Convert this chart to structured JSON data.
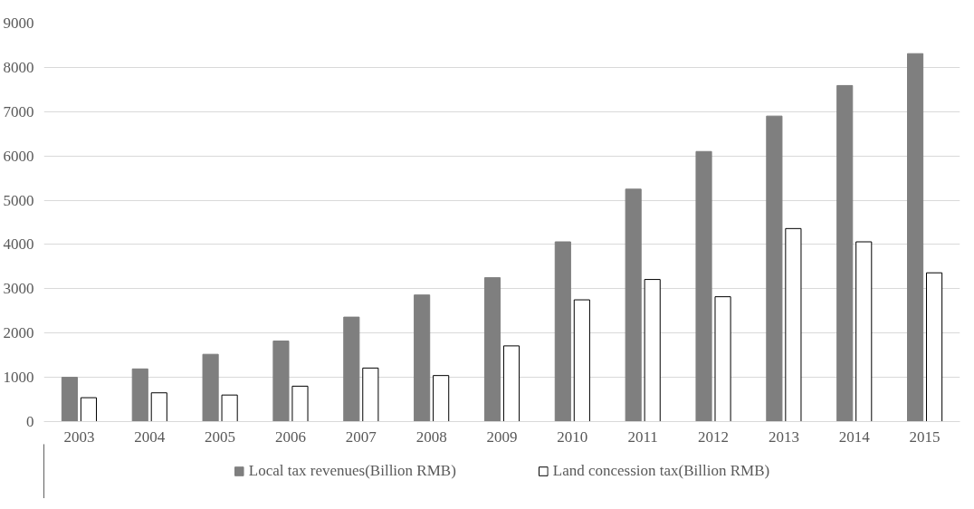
{
  "chart_data": {
    "type": "bar",
    "categories": [
      "2003",
      "2004",
      "2005",
      "2006",
      "2007",
      "2008",
      "2009",
      "2010",
      "2011",
      "2012",
      "2013",
      "2014",
      "2015"
    ],
    "series": [
      {
        "name": "Local tax revenues(Billion RMB)",
        "color": "#7f7f7f",
        "values": [
          1000,
          1190,
          1520,
          1820,
          2360,
          2860,
          3250,
          4060,
          5250,
          6100,
          6900,
          7590,
          8310
        ]
      },
      {
        "name": "Land concession tax(Billion RMB)",
        "color": "#ffffff",
        "values": [
          540,
          650,
          600,
          800,
          1210,
          1040,
          1710,
          2750,
          3210,
          2820,
          4360,
          4060,
          3360
        ]
      }
    ],
    "ylim": [
      0,
      9000
    ],
    "yticks": [
      0,
      1000,
      2000,
      3000,
      4000,
      5000,
      6000,
      7000,
      8000,
      9000
    ],
    "grid": "y",
    "legend": "bottom"
  }
}
